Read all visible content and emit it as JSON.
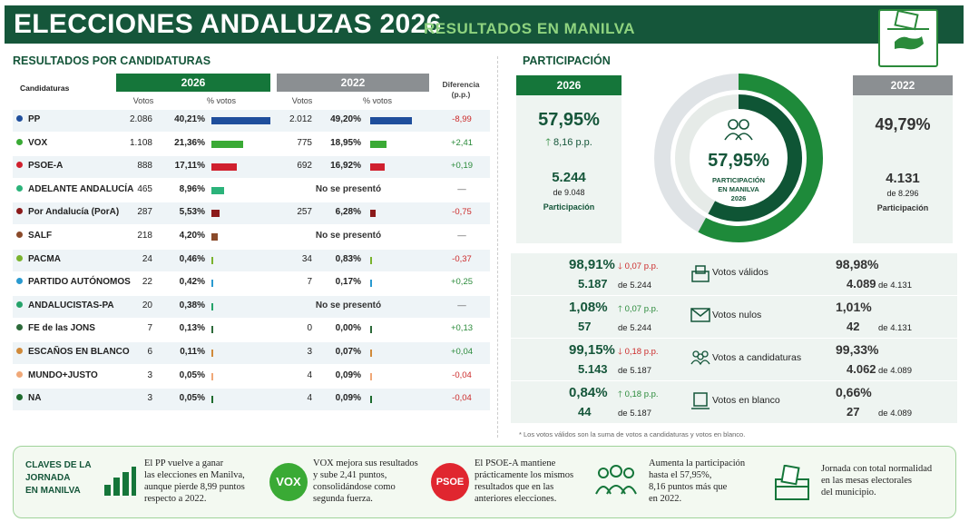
{
  "header": {
    "title": "ELECCIONES ANDALUZAS 2026",
    "subtitle": "RESULTADOS EN MANILVA"
  },
  "resultados": {
    "title": "RESULTADOS POR CANDIDATURAS",
    "col_candidaturas": "Candidaturas",
    "year_2026": "2026",
    "year_2022": "2022",
    "votos": "Votos",
    "pct_votos": "% votos",
    "diferencia": "Diferencia",
    "pp_unit": "(p.p.)",
    "no_presento": "No se presentó",
    "rows": [
      {
        "name": "PP",
        "color": "#1f4e9c",
        "v26": "2.086",
        "p26": "40,21%",
        "b26": 40.21,
        "v22": "2.012",
        "p22": "49,20%",
        "b22": 49.2,
        "diff": "-8,99",
        "dir": "down"
      },
      {
        "name": "VOX",
        "color": "#3aaa35",
        "v26": "1.108",
        "p26": "21,36%",
        "b26": 21.36,
        "v22": "775",
        "p22": "18,95%",
        "b22": 18.95,
        "diff": "+2,41",
        "dir": "up"
      },
      {
        "name": "PSOE-A",
        "color": "#d0202e",
        "v26": "888",
        "p26": "17,11%",
        "b26": 17.11,
        "v22": "692",
        "p22": "16,92%",
        "b22": 16.92,
        "diff": "+0,19",
        "dir": "up"
      },
      {
        "name": "ADELANTE ANDALUCÍA",
        "color": "#2bb37a",
        "v26": "465",
        "p26": "8,96%",
        "b26": 8.96,
        "v22": "",
        "p22": "",
        "b22": null,
        "diff": "—",
        "dir": "none"
      },
      {
        "name": "Por Andalucía (PorA)",
        "color": "#8b1a1a",
        "v26": "287",
        "p26": "5,53%",
        "b26": 5.53,
        "v22": "257",
        "p22": "6,28%",
        "b22": 6.28,
        "diff": "-0,75",
        "dir": "down"
      },
      {
        "name": "SALF",
        "color": "#8a4a2a",
        "v26": "218",
        "p26": "4,20%",
        "b26": 4.2,
        "v22": "",
        "p22": "",
        "b22": null,
        "diff": "—",
        "dir": "none"
      },
      {
        "name": "PACMA",
        "color": "#7ab32e",
        "v26": "24",
        "p26": "0,46%",
        "b26": 0.46,
        "v22": "34",
        "p22": "0,83%",
        "b22": 0.83,
        "diff": "-0,37",
        "dir": "down"
      },
      {
        "name": "PARTIDO AUTÓNOMOS",
        "color": "#2a9ad0",
        "v26": "22",
        "p26": "0,42%",
        "b26": 0.42,
        "v22": "7",
        "p22": "0,17%",
        "b22": 0.17,
        "diff": "+0,25",
        "dir": "up"
      },
      {
        "name": "ANDALUCISTAS-PA",
        "color": "#25a36a",
        "v26": "20",
        "p26": "0,38%",
        "b26": 0.38,
        "v22": "",
        "p22": "",
        "b22": null,
        "diff": "—",
        "dir": "none"
      },
      {
        "name": "FE de las JONS",
        "color": "#2d6a3a",
        "v26": "7",
        "p26": "0,13%",
        "b26": 0.13,
        "v22": "0",
        "p22": "0,00%",
        "b22": 0.0,
        "diff": "+0,13",
        "dir": "up"
      },
      {
        "name": "ESCAÑOS EN BLANCO",
        "color": "#d08a3a",
        "v26": "6",
        "p26": "0,11%",
        "b26": 0.11,
        "v22": "3",
        "p22": "0,07%",
        "b22": 0.07,
        "diff": "+0,04",
        "dir": "up"
      },
      {
        "name": "MUNDO+JUSTO",
        "color": "#f0a878",
        "v26": "3",
        "p26": "0,05%",
        "b26": 0.05,
        "v22": "4",
        "p22": "0,09%",
        "b22": 0.09,
        "diff": "-0,04",
        "dir": "down"
      },
      {
        "name": "NA",
        "color": "#1e6b2e",
        "v26": "3",
        "p26": "0,05%",
        "b26": 0.05,
        "v22": "4",
        "p22": "0,09%",
        "b22": 0.09,
        "diff": "-0,04",
        "dir": "down"
      }
    ]
  },
  "participacion": {
    "title": "PARTICIPACIÓN",
    "y26": "2026",
    "y22": "2022",
    "pct26": "57,95%",
    "delta": "8,16 p.p.",
    "votos26": "5.244",
    "de26": "de 9.048",
    "lbl": "Participación",
    "pct22": "49,79%",
    "votos22": "4.131",
    "de22": "de 8.296",
    "donut_value": 57.95,
    "donut_pct": "57,95%",
    "donut_l1": "PARTICIPACIÓN",
    "donut_l2": "EN MANILVA",
    "donut_l3": "2026",
    "stats": [
      {
        "p26": "98,91%",
        "d": "0,07 p.p.",
        "dir": "down",
        "n26": "5.187",
        "of26": "de 5.244",
        "label": "Votos válidos",
        "icon": "ballot-box-icon",
        "p22": "98,98%",
        "n22": "4.089",
        "of22": "de 4.131"
      },
      {
        "p26": "1,08%",
        "d": "0,07 p.p.",
        "dir": "up",
        "n26": "57",
        "of26": "de 5.244",
        "label": "Votos nulos",
        "icon": "envelope-icon",
        "p22": "1,01%",
        "n22": "42",
        "of22": "de 4.131"
      },
      {
        "p26": "99,15%",
        "d": "0,18 p.p.",
        "dir": "down",
        "n26": "5.143",
        "of26": "de 5.187",
        "label": "Votos a candidaturas",
        "icon": "people-icon",
        "p22": "99,33%",
        "n22": "4.062",
        "of22": "de 4.089"
      },
      {
        "p26": "0,84%",
        "d": "0,18 p.p.",
        "dir": "up",
        "n26": "44",
        "of26": "de 5.187",
        "label": "Votos en blanco",
        "icon": "blank-ballot-icon",
        "p22": "0,66%",
        "n22": "27",
        "of22": "de 4.089"
      }
    ],
    "note": "* Los votos válidos son la suma de votos a candidaturas y votos en blanco."
  },
  "claves": {
    "title_l1": "CLAVES DE LA",
    "title_l2": "JORNADA",
    "title_l3": "EN MANILVA",
    "items": [
      {
        "icon": "bar-chart-icon",
        "lines": [
          "El PP vuelve a ganar",
          "las elecciones en Manilva,",
          "aunque pierde 8,99 puntos",
          "respecto a 2022."
        ]
      },
      {
        "icon": "vox-logo",
        "logo": "VOX",
        "lines": [
          "VOX mejora sus resultados",
          "y sube 2,41 puntos,",
          "consolidándose como",
          "segunda fuerza."
        ]
      },
      {
        "icon": "psoe-logo",
        "logo": "PSOE",
        "lines": [
          "El PSOE-A mantiene",
          "prácticamente los mismos",
          "resultados que en las",
          "anteriores elecciones."
        ]
      },
      {
        "icon": "people-icon",
        "lines": [
          "Aumenta la participación",
          "hasta el 57,95%,",
          "8,16 puntos más que",
          "en 2022."
        ]
      },
      {
        "icon": "ballot-box-icon",
        "lines": [
          "Jornada con total normalidad",
          "en las mesas electorales",
          "del municipio."
        ]
      }
    ]
  }
}
